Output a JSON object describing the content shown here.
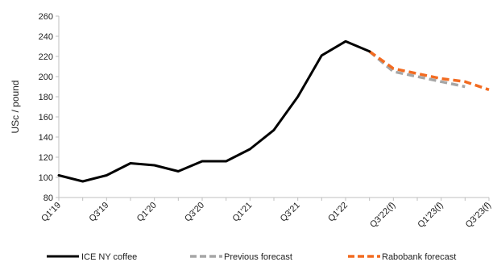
{
  "chart_data": {
    "type": "line",
    "title": "",
    "xlabel": "",
    "ylabel": "USc / pound",
    "ylim": [
      80,
      260
    ],
    "yticks": [
      80,
      100,
      120,
      140,
      160,
      180,
      200,
      220,
      240,
      260
    ],
    "grid": false,
    "legend_position": "bottom",
    "categories": [
      "Q1'19",
      "Q2'19",
      "Q3'19",
      "Q4'19",
      "Q1'20",
      "Q2'20",
      "Q3'20",
      "Q4'20",
      "Q1'21",
      "Q2'21",
      "Q3'21",
      "Q4'21",
      "Q1'22",
      "Q2'22",
      "Q3'22(f)",
      "Q4'22(f)",
      "Q1'23(f)",
      "Q2'23(f)",
      "Q3'23(f)"
    ],
    "tick_labels": [
      "Q1'19",
      "Q3'19",
      "Q1'20",
      "Q3'20",
      "Q1'21",
      "Q3'21",
      "Q1'22",
      "Q3'22(f)",
      "Q1'23(f)",
      "Q3'23(f)"
    ],
    "series": [
      {
        "name": "ICE NY coffee",
        "color": "#000000",
        "style": "solid",
        "values": [
          102,
          96,
          102,
          114,
          112,
          106,
          116,
          116,
          128,
          147,
          180,
          221,
          235,
          225,
          null,
          null,
          null,
          null,
          null
        ]
      },
      {
        "name": "Previous forecast",
        "color": "#a6a6a6",
        "style": "dashed",
        "values": [
          null,
          null,
          null,
          null,
          null,
          null,
          null,
          null,
          null,
          null,
          null,
          null,
          null,
          225,
          205,
          200,
          195,
          190,
          null
        ]
      },
      {
        "name": "Rabobank forecast",
        "color": "#f26b21",
        "style": "dashed",
        "values": [
          null,
          null,
          null,
          null,
          null,
          null,
          null,
          null,
          null,
          null,
          null,
          null,
          null,
          225,
          208,
          203,
          198,
          195,
          187
        ]
      }
    ]
  }
}
